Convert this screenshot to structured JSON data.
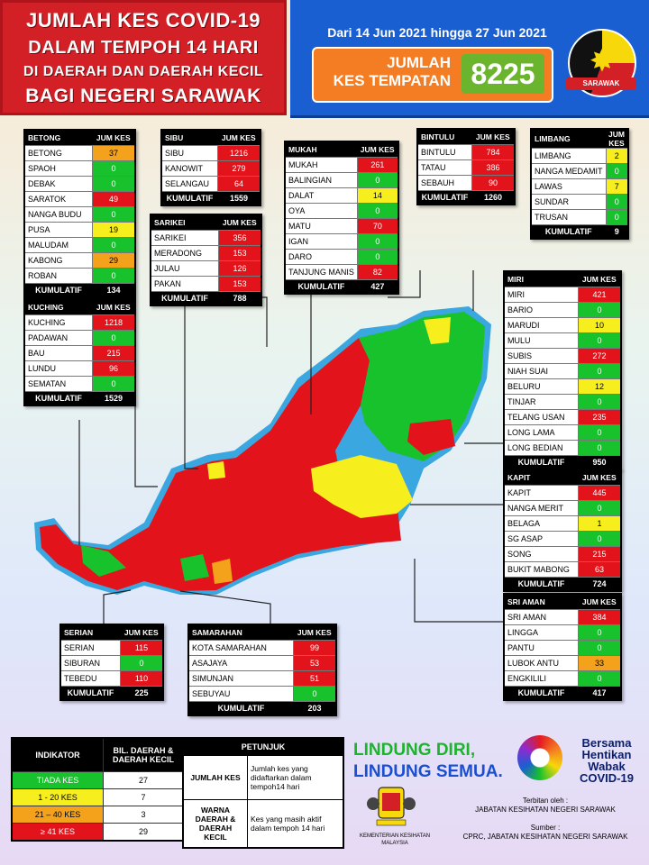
{
  "header": {
    "title_lines": [
      "JUMLAH KES COVID-19",
      "DALAM TEMPOH 14 HARI",
      "DI DAERAH DAN DAERAH KECIL",
      "BAGI NEGERI SARAWAK"
    ],
    "period": "Dari 14 Jun 2021 hingga 27 Jun 2021",
    "total_label_1": "JUMLAH",
    "total_label_2": "KES TEMPATAN",
    "total_value": "8225",
    "flag_label": "SARAWAK"
  },
  "colors": {
    "tiada": "#17c22c",
    "low": "#f6ef1d",
    "mid": "#f4a21c",
    "high": "#e3131b"
  },
  "col_header": "JUM KES",
  "cumulative_label": "KUMULATIF",
  "divisions": {
    "betong": {
      "name": "BETONG",
      "rows": [
        [
          "BETONG",
          "37",
          "o"
        ],
        [
          "SPAOH",
          "0",
          "g"
        ],
        [
          "DEBAK",
          "0",
          "g"
        ],
        [
          "SARATOK",
          "49",
          "r"
        ],
        [
          "NANGA BUDU",
          "0",
          "g"
        ],
        [
          "PUSA",
          "19",
          "y"
        ],
        [
          "MALUDAM",
          "0",
          "g"
        ],
        [
          "KABONG",
          "29",
          "o"
        ],
        [
          "ROBAN",
          "0",
          "g"
        ]
      ],
      "total": "134"
    },
    "kuching": {
      "name": "KUCHING",
      "rows": [
        [
          "KUCHING",
          "1218",
          "r"
        ],
        [
          "PADAWAN",
          "0",
          "g"
        ],
        [
          "BAU",
          "215",
          "r"
        ],
        [
          "LUNDU",
          "96",
          "r"
        ],
        [
          "SEMATAN",
          "0",
          "g"
        ]
      ],
      "total": "1529"
    },
    "sibu": {
      "name": "SIBU",
      "rows": [
        [
          "SIBU",
          "1216",
          "r"
        ],
        [
          "KANOWIT",
          "279",
          "r"
        ],
        [
          "SELANGAU",
          "64",
          "r"
        ]
      ],
      "total": "1559"
    },
    "sarikei": {
      "name": "SARIKEI",
      "rows": [
        [
          "SARIKEI",
          "356",
          "r"
        ],
        [
          "MERADONG",
          "153",
          "r"
        ],
        [
          "JULAU",
          "126",
          "r"
        ],
        [
          "PAKAN",
          "153",
          "r"
        ]
      ],
      "total": "788"
    },
    "mukah": {
      "name": "MUKAH",
      "rows": [
        [
          "MUKAH",
          "261",
          "r"
        ],
        [
          "BALINGIAN",
          "0",
          "g"
        ],
        [
          "DALAT",
          "14",
          "y"
        ],
        [
          "OYA",
          "0",
          "g"
        ],
        [
          "MATU",
          "70",
          "r"
        ],
        [
          "IGAN",
          "0",
          "g"
        ],
        [
          "DARO",
          "0",
          "g"
        ],
        [
          "TANJUNG MANIS",
          "82",
          "r"
        ]
      ],
      "total": "427"
    },
    "bintulu": {
      "name": "BINTULU",
      "rows": [
        [
          "BINTULU",
          "784",
          "r"
        ],
        [
          "TATAU",
          "386",
          "r"
        ],
        [
          "SEBAUH",
          "90",
          "r"
        ]
      ],
      "total": "1260"
    },
    "limbang": {
      "name": "LIMBANG",
      "rows": [
        [
          "LIMBANG",
          "2",
          "y"
        ],
        [
          "NANGA MEDAMIT",
          "0",
          "g"
        ],
        [
          "LAWAS",
          "7",
          "y"
        ],
        [
          "SUNDAR",
          "0",
          "g"
        ],
        [
          "TRUSAN",
          "0",
          "g"
        ]
      ],
      "total": "9"
    },
    "miri": {
      "name": "MIRI",
      "rows": [
        [
          "MIRI",
          "421",
          "r"
        ],
        [
          "BARIO",
          "0",
          "g"
        ],
        [
          "MARUDI",
          "10",
          "y"
        ],
        [
          "MULU",
          "0",
          "g"
        ],
        [
          "SUBIS",
          "272",
          "r"
        ],
        [
          "NIAH SUAI",
          "0",
          "g"
        ],
        [
          "BELURU",
          "12",
          "y"
        ],
        [
          "TINJAR",
          "0",
          "g"
        ],
        [
          "TELANG USAN",
          "235",
          "r"
        ],
        [
          "LONG LAMA",
          "0",
          "g"
        ],
        [
          "LONG BEDIAN",
          "0",
          "g"
        ]
      ],
      "total": "950"
    },
    "kapit": {
      "name": "KAPIT",
      "rows": [
        [
          "KAPIT",
          "445",
          "r"
        ],
        [
          "NANGA MERIT",
          "0",
          "g"
        ],
        [
          "BELAGA",
          "1",
          "y"
        ],
        [
          "SG ASAP",
          "0",
          "g"
        ],
        [
          "SONG",
          "215",
          "r"
        ],
        [
          "BUKIT MABONG",
          "63",
          "r"
        ]
      ],
      "total": "724"
    },
    "sri_aman": {
      "name": "SRI AMAN",
      "rows": [
        [
          "SRI AMAN",
          "384",
          "r"
        ],
        [
          "LINGGA",
          "0",
          "g"
        ],
        [
          "PANTU",
          "0",
          "g"
        ],
        [
          "LUBOK ANTU",
          "33",
          "o"
        ],
        [
          "ENGKILILI",
          "0",
          "g"
        ]
      ],
      "total": "417"
    },
    "serian": {
      "name": "SERIAN",
      "rows": [
        [
          "SERIAN",
          "115",
          "r"
        ],
        [
          "SIBURAN",
          "0",
          "g"
        ],
        [
          "TEBEDU",
          "110",
          "r"
        ]
      ],
      "total": "225"
    },
    "samarahan": {
      "name": "SAMARAHAN",
      "rows": [
        [
          "KOTA SAMARAHAN",
          "99",
          "r"
        ],
        [
          "ASAJAYA",
          "53",
          "r"
        ],
        [
          "SIMUNJAN",
          "51",
          "r"
        ],
        [
          "SEBUYAU",
          "0",
          "g"
        ]
      ],
      "total": "203"
    }
  },
  "legend": {
    "head_indicator": "INDIKATOR",
    "head_count": "BIL. DAERAH & DAERAH KECIL",
    "rows": [
      [
        "TIADA KES",
        "27",
        "g"
      ],
      [
        "1 - 20 KES",
        "7",
        "y"
      ],
      [
        "21 – 40 KES",
        "3",
        "o"
      ],
      [
        "≥ 41 KES",
        "29",
        "r"
      ]
    ]
  },
  "guide": {
    "title": "PETUNJUK",
    "k1": "JUMLAH KES",
    "v1": "Jumlah kes yang didaftarkan dalam tempoh14 hari",
    "k2": "WARNA DAERAH & DAERAH KECIL",
    "v2": "Kes yang masih aktif dalam tempoh 14 hari"
  },
  "slogan": {
    "line1": "LINDUNG DIRI,",
    "line2": "LINDUNG SEMUA."
  },
  "bersama": {
    "l1": "Bersama",
    "l2": "Hentikan",
    "l3": "Wabak",
    "l4": "COVID-19"
  },
  "ministry": "KEMENTERIAN KESIHATAN MALAYSIA",
  "issuer": {
    "label": "Terbitan oleh :",
    "value": "JABATAN KESIHATAN NEGERI SARAWAK"
  },
  "source": {
    "label": "Sumber :",
    "value": "CPRC, JABATAN KESIHATAN NEGERI SARAWAK"
  }
}
